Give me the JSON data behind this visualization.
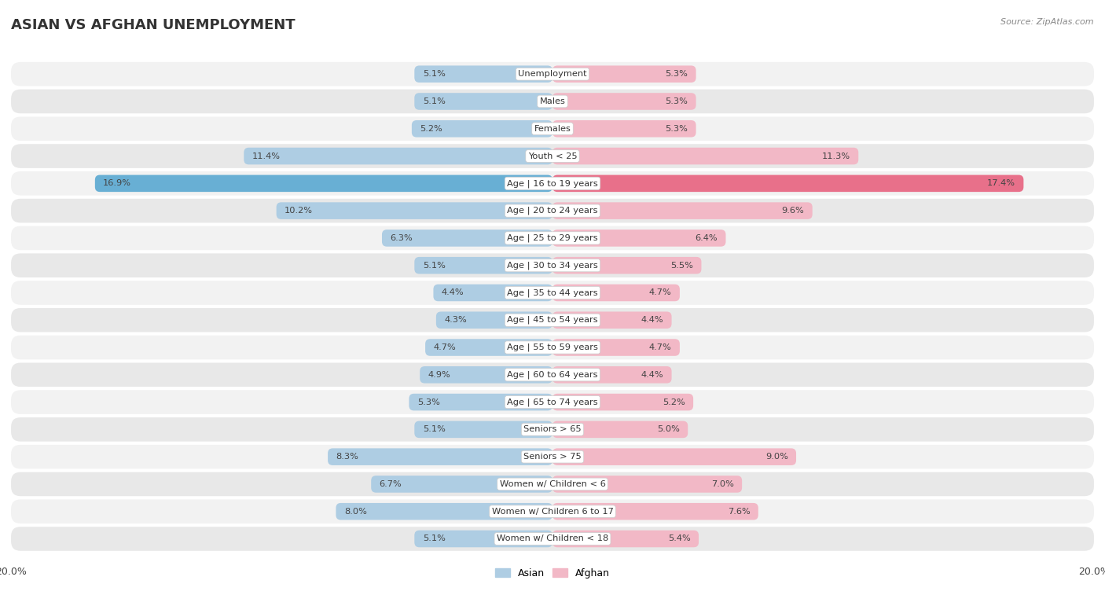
{
  "title": "ASIAN VS AFGHAN UNEMPLOYMENT",
  "source": "Source: ZipAtlas.com",
  "categories": [
    "Unemployment",
    "Males",
    "Females",
    "Youth < 25",
    "Age | 16 to 19 years",
    "Age | 20 to 24 years",
    "Age | 25 to 29 years",
    "Age | 30 to 34 years",
    "Age | 35 to 44 years",
    "Age | 45 to 54 years",
    "Age | 55 to 59 years",
    "Age | 60 to 64 years",
    "Age | 65 to 74 years",
    "Seniors > 65",
    "Seniors > 75",
    "Women w/ Children < 6",
    "Women w/ Children 6 to 17",
    "Women w/ Children < 18"
  ],
  "asian_values": [
    5.1,
    5.1,
    5.2,
    11.4,
    16.9,
    10.2,
    6.3,
    5.1,
    4.4,
    4.3,
    4.7,
    4.9,
    5.3,
    5.1,
    8.3,
    6.7,
    8.0,
    5.1
  ],
  "afghan_values": [
    5.3,
    5.3,
    5.3,
    11.3,
    17.4,
    9.6,
    6.4,
    5.5,
    4.7,
    4.4,
    4.7,
    4.4,
    5.2,
    5.0,
    9.0,
    7.0,
    7.6,
    5.4
  ],
  "asian_color": "#aecde3",
  "afghan_color": "#f2b8c6",
  "asian_color_highlight": "#68afd4",
  "afghan_color_highlight": "#e8708a",
  "row_bg_light": "#f2f2f2",
  "row_bg_dark": "#e8e8e8",
  "fig_bg": "#ffffff",
  "max_value": 20.0,
  "axis_label": "20.0%",
  "title_color": "#333333",
  "label_color": "#555555",
  "value_color": "#444444"
}
